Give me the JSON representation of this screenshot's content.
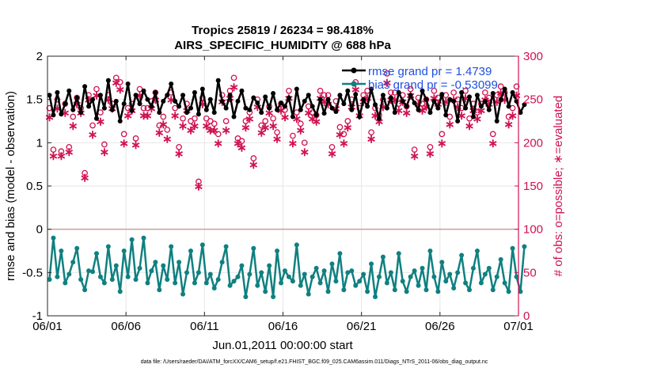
{
  "chart_data": {
    "type": "line",
    "title": "Tropics 25819 / 26234 = 98.418%",
    "subtitle": "AIRS_SPECIFIC_HUMIDITY @ 688 hPa",
    "xlabel": "Jun.01,2011 00:00:00 start",
    "ylabel": "rmse and bias (model - observation)",
    "y2label": "# of obs: o=possible; ∗=evaluated",
    "footer": "data file: /Users/raeder/DAI/ATM_forcXX/CAM6_setup/f.e21.FHIST_BGC.f09_025.CAM6assim.011/Diags_NTrS_2011-06/obs_diag_output.nc",
    "x_ticks": [
      "06/01",
      "06/06",
      "06/11",
      "06/16",
      "06/21",
      "06/26",
      "07/01"
    ],
    "xlim": [
      0,
      30
    ],
    "ylim": [
      -1,
      2
    ],
    "y_ticks": [
      "-1",
      "-0.5",
      "0",
      "0.5",
      "1",
      "1.5",
      "2"
    ],
    "y2lim": [
      0,
      300
    ],
    "y2_ticks": [
      "0",
      "50",
      "100",
      "150",
      "200",
      "250",
      "300"
    ],
    "legend": {
      "position": "top-right",
      "entries": [
        "rmse grand pr = 1.4739",
        "bias grand pr = -0.53099"
      ]
    },
    "colors": {
      "rmse": "#000000",
      "bias": "#108080",
      "obs": "#d0114f",
      "zero_line": "#c8a0a0",
      "legend_text": "#1f4fe0",
      "grid": "#e6e6e6",
      "axis": "#262626"
    },
    "x_step_days": 0.25,
    "series": [
      {
        "name": "rmse",
        "values": [
          1.55,
          1.32,
          1.58,
          1.33,
          1.45,
          1.6,
          1.38,
          1.52,
          1.35,
          1.65,
          1.42,
          1.5,
          1.28,
          1.55,
          1.4,
          1.72,
          1.38,
          1.48,
          1.25,
          1.45,
          1.68,
          1.37,
          1.55,
          1.45,
          1.6,
          1.5,
          1.42,
          1.58,
          1.35,
          1.48,
          1.55,
          1.68,
          1.48,
          1.42,
          1.55,
          1.35,
          1.4,
          1.58,
          1.33,
          1.62,
          1.38,
          1.5,
          1.35,
          1.72,
          1.48,
          1.4,
          1.55,
          1.3,
          1.48,
          1.6,
          1.4,
          1.38,
          1.52,
          1.46,
          1.35,
          1.53,
          1.4,
          1.57,
          1.38,
          1.46,
          1.42,
          1.52,
          1.3,
          1.62,
          1.38,
          1.48,
          1.55,
          1.42,
          1.32,
          1.5,
          1.34,
          1.5,
          1.4,
          1.36,
          1.55,
          1.45,
          1.6,
          1.38,
          1.56,
          1.3,
          1.5,
          1.42,
          1.62,
          1.44,
          1.28,
          1.55,
          1.4,
          1.52,
          1.35,
          1.58,
          1.48,
          1.42,
          1.55,
          1.46,
          1.38,
          1.6,
          1.5,
          1.35,
          1.48,
          1.4,
          1.56,
          1.32,
          1.5,
          1.48,
          1.25,
          1.58,
          1.4,
          1.53,
          1.3,
          1.55,
          1.42,
          1.48,
          1.38,
          1.57,
          1.25,
          1.5,
          1.62,
          1.42,
          1.58,
          1.48,
          1.35,
          1.44
        ]
      },
      {
        "name": "bias",
        "values": [
          -0.58,
          -0.1,
          -0.55,
          -0.25,
          -0.62,
          -0.52,
          -0.38,
          -0.22,
          -0.58,
          -0.7,
          -0.48,
          -0.49,
          -0.28,
          -0.55,
          -0.62,
          -0.2,
          -0.58,
          -0.42,
          -0.72,
          -0.25,
          -0.55,
          -0.12,
          -0.58,
          -0.45,
          -0.1,
          -0.62,
          -0.48,
          -0.38,
          -0.7,
          -0.42,
          -0.58,
          -0.2,
          -0.62,
          -0.38,
          -0.75,
          -0.5,
          -0.25,
          -0.62,
          -0.5,
          -0.18,
          -0.62,
          -0.52,
          -0.68,
          -0.58,
          -0.38,
          -0.2,
          -0.65,
          -0.6,
          -0.55,
          -0.42,
          -0.78,
          -0.52,
          -0.22,
          -0.65,
          -0.5,
          -0.72,
          -0.42,
          -0.78,
          -0.25,
          -0.62,
          -0.48,
          -0.55,
          -0.6,
          -0.18,
          -0.65,
          -0.52,
          -0.75,
          -0.55,
          -0.45,
          -0.62,
          -0.48,
          -0.72,
          -0.4,
          -0.6,
          -0.28,
          -0.7,
          -0.5,
          -0.48,
          -0.65,
          -0.6,
          -0.52,
          -0.72,
          -0.4,
          -0.78,
          -0.55,
          -0.32,
          -0.62,
          -0.5,
          -0.7,
          -0.28,
          -0.6,
          -0.72,
          -0.55,
          -0.48,
          -0.65,
          -0.45,
          -0.7,
          -0.25,
          -0.55,
          -0.72,
          -0.38,
          -0.6,
          -0.52,
          -0.68,
          -0.5,
          -0.3,
          -0.62,
          -0.7,
          -0.45,
          -0.25,
          -0.62,
          -0.52,
          -0.45,
          -0.7,
          -0.55,
          -0.35,
          -0.62,
          -0.72,
          -0.22,
          -0.55,
          -0.72,
          -0.2
        ]
      },
      {
        "name": "obs possible",
        "values": [
          240,
          192,
          250,
          190,
          245,
          195,
          230,
          252,
          240,
          165,
          255,
          220,
          262,
          235,
          198,
          255,
          245,
          275,
          270,
          210,
          240,
          245,
          205,
          262,
          240,
          240,
          248,
          258,
          220,
          230,
          215,
          258,
          240,
          195,
          228,
          245,
          225,
          228,
          155,
          252,
          228,
          225,
          222,
          210,
          255,
          225,
          260,
          275,
          205,
          202,
          225,
          235,
          182,
          250,
          220,
          225,
          242,
          228,
          212,
          245,
          238,
          260,
          208,
          235,
          222,
          200,
          242,
          235,
          232,
          260,
          255,
          255,
          195,
          248,
          218,
          210,
          225,
          250,
          270,
          240,
          255,
          260,
          212,
          240,
          232,
          250,
          280,
          258,
          258,
          245,
          255,
          242,
          262,
          192,
          252,
          245,
          250,
          195,
          260,
          252,
          210,
          255,
          230,
          258,
          250,
          240,
          260,
          228,
          245,
          235,
          245,
          258,
          252,
          210,
          255,
          265,
          258,
          230,
          240,
          265
        ]
      },
      {
        "name": "obs evaluated",
        "values": [
          230,
          185,
          240,
          185,
          235,
          190,
          220,
          245,
          235,
          160,
          250,
          210,
          255,
          225,
          190,
          250,
          240,
          270,
          262,
          200,
          232,
          238,
          198,
          255,
          232,
          232,
          240,
          250,
          212,
          222,
          205,
          250,
          232,
          188,
          220,
          238,
          215,
          220,
          150,
          245,
          220,
          215,
          215,
          200,
          248,
          215,
          252,
          265,
          200,
          195,
          218,
          228,
          175,
          242,
          212,
          218,
          235,
          220,
          205,
          238,
          230,
          252,
          200,
          228,
          215,
          190,
          235,
          228,
          225,
          252,
          248,
          245,
          188,
          240,
          210,
          200,
          218,
          242,
          262,
          232,
          248,
          252,
          205,
          232,
          225,
          242,
          270,
          250,
          250,
          238,
          248,
          235,
          255,
          185,
          245,
          238,
          242,
          188,
          252,
          245,
          200,
          248,
          222,
          250,
          242,
          232,
          252,
          220,
          238,
          228,
          238,
          250,
          245,
          200,
          248,
          258,
          250,
          222,
          232,
          255
        ]
      }
    ]
  }
}
